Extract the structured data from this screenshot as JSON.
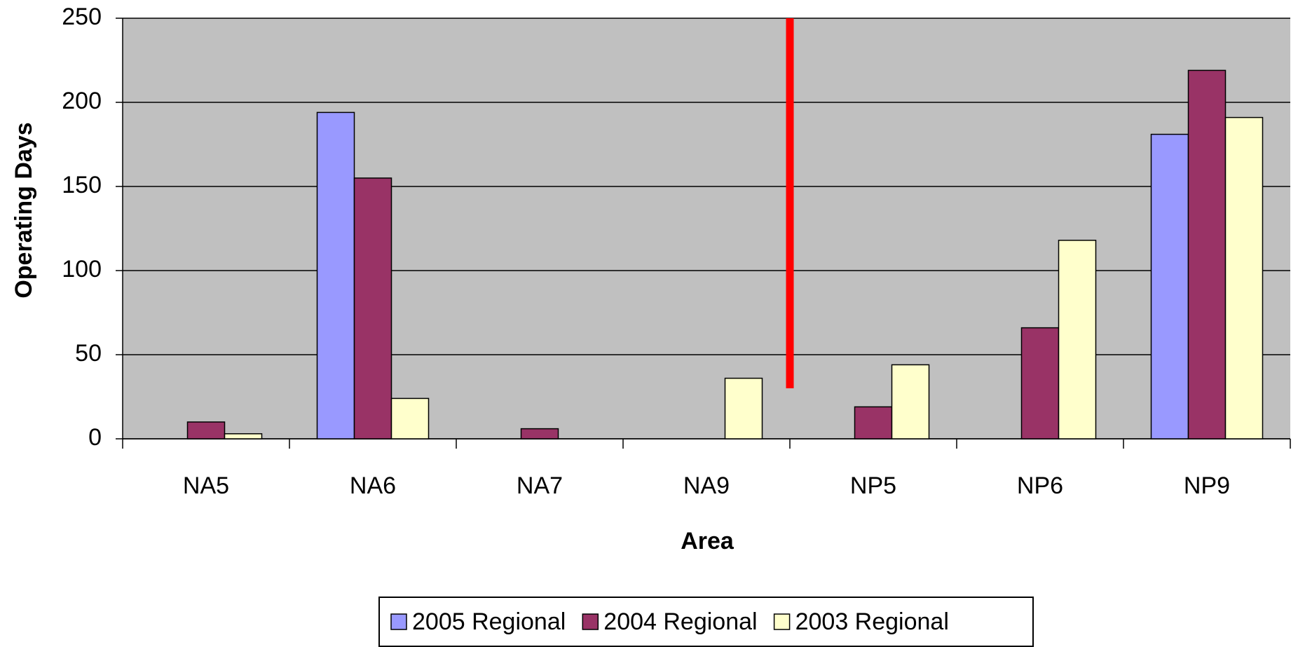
{
  "chart_data": {
    "type": "bar",
    "x_label": "Area",
    "y_label": "Operating Days",
    "categories": [
      "NA5",
      "NA6",
      "NA7",
      "NA9",
      "NP5",
      "NP6",
      "NP9"
    ],
    "series": [
      {
        "name": "2005 Regional",
        "color": "#9999ff",
        "values": [
          null,
          194,
          null,
          null,
          null,
          null,
          181
        ]
      },
      {
        "name": "2004 Regional",
        "color": "#993366",
        "values": [
          10,
          155,
          6,
          null,
          19,
          66,
          219
        ]
      },
      {
        "name": "2003 Regional",
        "color": "#ffffcc",
        "values": [
          3,
          24,
          null,
          36,
          44,
          118,
          191
        ]
      }
    ],
    "ylim": [
      0,
      250
    ],
    "yticks": [
      0,
      50,
      100,
      150,
      200,
      250
    ],
    "grid": true,
    "plot_background": "#c0c0c0",
    "legend": "bottom"
  }
}
